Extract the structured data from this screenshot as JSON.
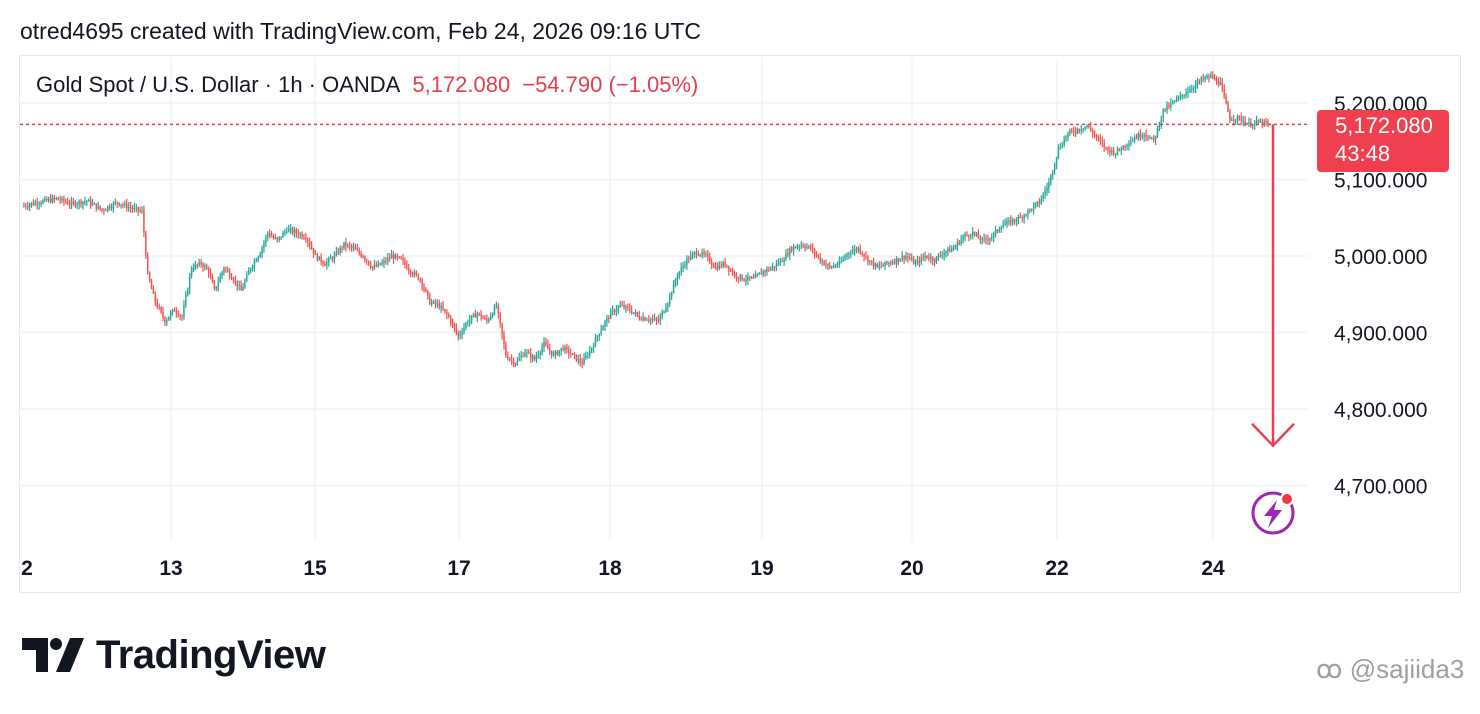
{
  "header": {
    "attribution": "otred4695 created with TradingView.com, Feb 24, 2026 09:16 UTC"
  },
  "legend": {
    "symbol": "Gold Spot / U.S. Dollar · 1h · OANDA",
    "last_price": "5,172.080",
    "change": "−54.790 (−1.05%)"
  },
  "price_tag": {
    "price": "5,172.080",
    "countdown": "43:48"
  },
  "brand": {
    "name": "TradingView"
  },
  "watermark": {
    "handle": "@sajiida3"
  },
  "colors": {
    "up": "#26a69a",
    "down": "#ef5350",
    "annotation": "#e8424f",
    "grid": "#f0f3fa"
  },
  "chart_data": {
    "type": "candlestick",
    "title": "Gold Spot / U.S. Dollar · 1h · OANDA",
    "timeframe": "1h",
    "x_tick_labels": [
      "2",
      "13",
      "15",
      "17",
      "18",
      "19",
      "20",
      "22",
      "24"
    ],
    "y_tick_labels": [
      "5,200.000",
      "5,100.000",
      "5,000.000",
      "4,900.000",
      "4,800.000",
      "4,700.000"
    ],
    "y_ticks": [
      5200,
      5100,
      5000,
      4900,
      4800,
      4700
    ],
    "ylim": [
      4636,
      5270
    ],
    "last_price": 5172.08,
    "close_path": [
      [
        0,
        5065
      ],
      [
        8,
        5070
      ],
      [
        18,
        5075
      ],
      [
        26,
        5068
      ],
      [
        34,
        5072
      ],
      [
        42,
        5060
      ],
      [
        50,
        5070
      ],
      [
        58,
        5062
      ],
      [
        63,
        5058
      ],
      [
        66,
        4975
      ],
      [
        70,
        4940
      ],
      [
        75,
        4915
      ],
      [
        80,
        4930
      ],
      [
        84,
        4920
      ],
      [
        89,
        4985
      ],
      [
        94,
        4990
      ],
      [
        98,
        4980
      ],
      [
        101,
        4955
      ],
      [
        106,
        4985
      ],
      [
        111,
        4970
      ],
      [
        115,
        4955
      ],
      [
        120,
        4985
      ],
      [
        125,
        5005
      ],
      [
        129,
        5030
      ],
      [
        134,
        5020
      ],
      [
        139,
        5035
      ],
      [
        144,
        5030
      ],
      [
        149,
        5025
      ],
      [
        154,
        5000
      ],
      [
        159,
        4990
      ],
      [
        164,
        5000
      ],
      [
        169,
        5015
      ],
      [
        174,
        5010
      ],
      [
        179,
        5000
      ],
      [
        184,
        4985
      ],
      [
        189,
        4990
      ],
      [
        194,
        5000
      ],
      [
        199,
        4995
      ],
      [
        204,
        4980
      ],
      [
        209,
        4970
      ],
      [
        214,
        4940
      ],
      [
        219,
        4935
      ],
      [
        224,
        4920
      ],
      [
        229,
        4895
      ],
      [
        234,
        4915
      ],
      [
        239,
        4925
      ],
      [
        244,
        4915
      ],
      [
        249,
        4935
      ],
      [
        254,
        4870
      ],
      [
        259,
        4860
      ],
      [
        264,
        4875
      ],
      [
        269,
        4865
      ],
      [
        274,
        4885
      ],
      [
        279,
        4870
      ],
      [
        284,
        4880
      ],
      [
        289,
        4870
      ],
      [
        294,
        4860
      ],
      [
        299,
        4880
      ],
      [
        304,
        4905
      ],
      [
        309,
        4925
      ],
      [
        314,
        4935
      ],
      [
        319,
        4930
      ],
      [
        324,
        4920
      ],
      [
        329,
        4918
      ],
      [
        334,
        4915
      ],
      [
        339,
        4940
      ],
      [
        344,
        4975
      ],
      [
        349,
        4995
      ],
      [
        354,
        5005
      ],
      [
        359,
        5000
      ],
      [
        364,
        4985
      ],
      [
        369,
        4990
      ],
      [
        374,
        4975
      ],
      [
        379,
        4970
      ],
      [
        384,
        4970
      ],
      [
        389,
        4980
      ],
      [
        394,
        4985
      ],
      [
        399,
        4995
      ],
      [
        404,
        5010
      ],
      [
        409,
        5015
      ],
      [
        414,
        5010
      ],
      [
        419,
        4995
      ],
      [
        424,
        4985
      ],
      [
        429,
        4990
      ],
      [
        434,
        5005
      ],
      [
        439,
        5010
      ],
      [
        444,
        4995
      ],
      [
        449,
        4985
      ],
      [
        454,
        4990
      ],
      [
        459,
        4995
      ],
      [
        464,
        5000
      ],
      [
        469,
        4990
      ],
      [
        474,
        5000
      ],
      [
        479,
        4995
      ],
      [
        484,
        5005
      ],
      [
        489,
        5010
      ],
      [
        494,
        5025
      ],
      [
        499,
        5030
      ],
      [
        504,
        5020
      ],
      [
        509,
        5025
      ],
      [
        514,
        5040
      ],
      [
        519,
        5045
      ],
      [
        524,
        5050
      ],
      [
        529,
        5060
      ],
      [
        534,
        5070
      ],
      [
        539,
        5095
      ],
      [
        544,
        5140
      ],
      [
        549,
        5160
      ],
      [
        554,
        5165
      ],
      [
        559,
        5170
      ],
      [
        564,
        5155
      ],
      [
        569,
        5140
      ],
      [
        574,
        5135
      ],
      [
        579,
        5145
      ],
      [
        584,
        5155
      ],
      [
        589,
        5160
      ],
      [
        594,
        5150
      ],
      [
        599,
        5190
      ],
      [
        604,
        5200
      ],
      [
        609,
        5210
      ],
      [
        614,
        5220
      ],
      [
        619,
        5230
      ],
      [
        624,
        5235
      ],
      [
        629,
        5225
      ],
      [
        634,
        5180
      ],
      [
        639,
        5180
      ],
      [
        644,
        5172
      ],
      [
        649,
        5175
      ],
      [
        654,
        5172
      ]
    ],
    "projection": {
      "from_price": 5172.08,
      "to_price": 4752,
      "direction": "down"
    }
  }
}
